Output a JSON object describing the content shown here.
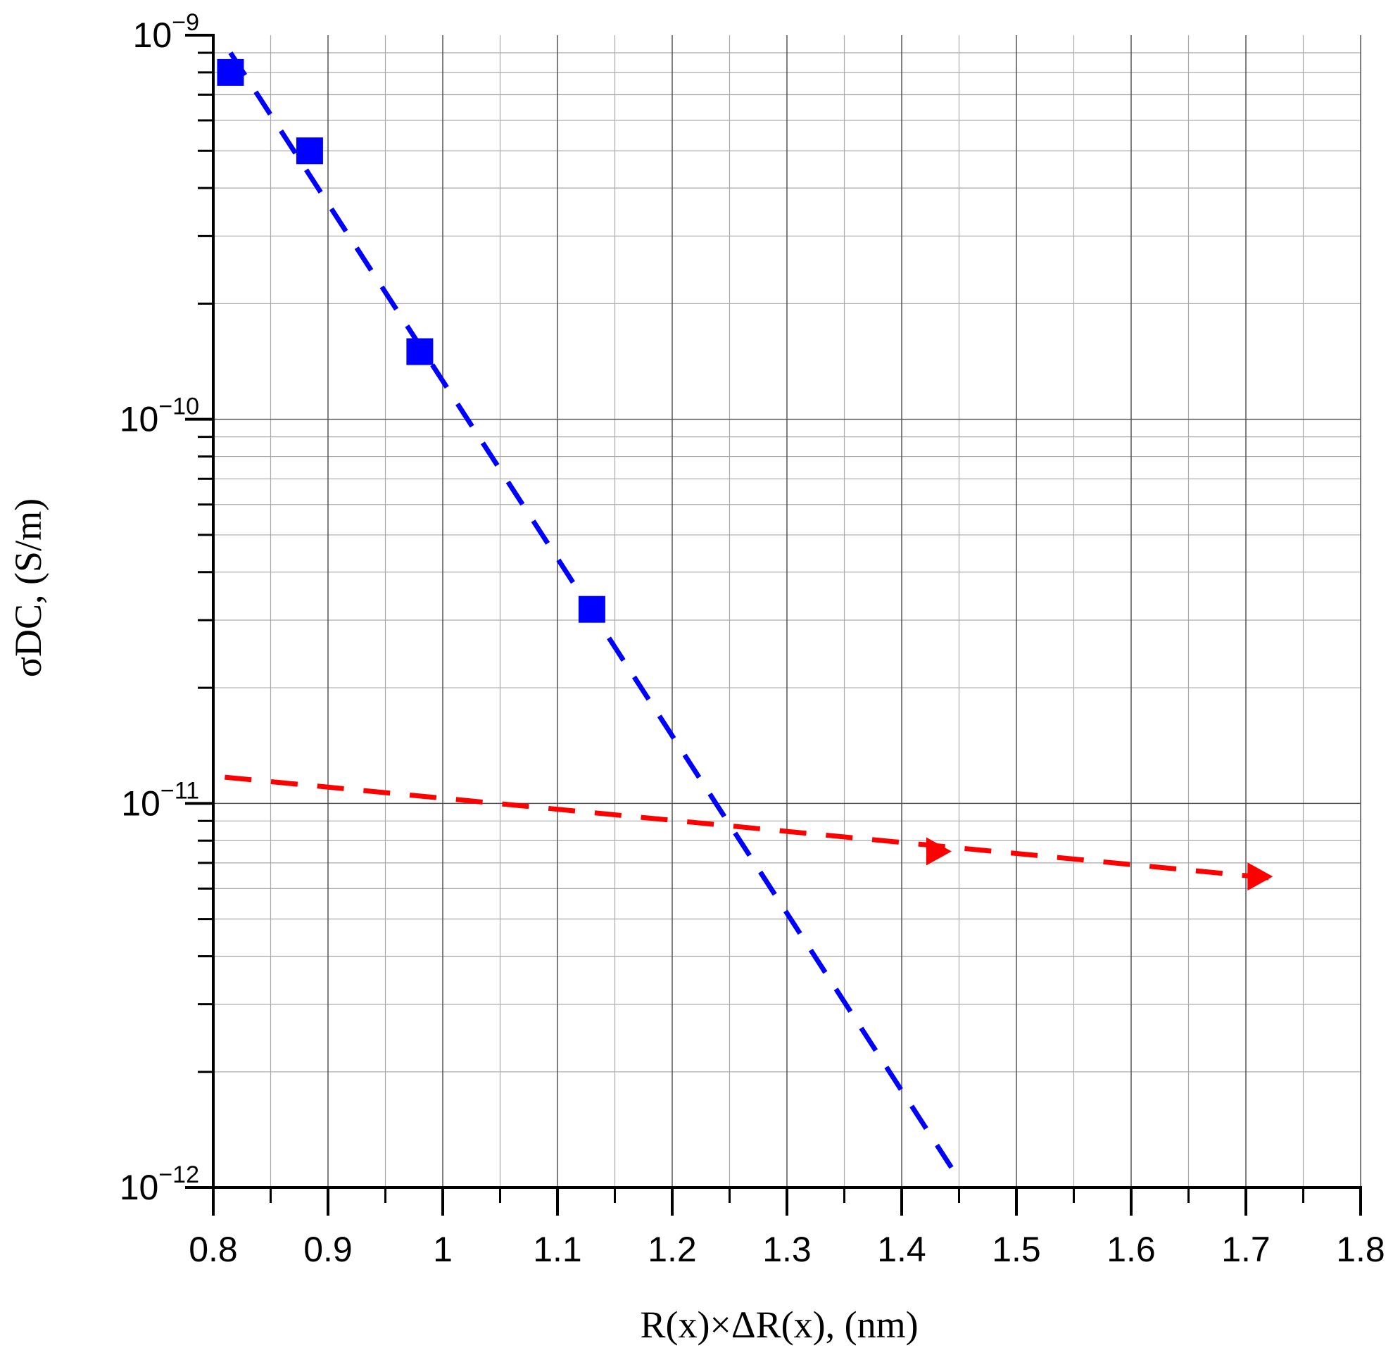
{
  "chart_data": {
    "type": "scatter",
    "xlabel": "R(x)×ΔR(x), (nm)",
    "ylabel": "σDC, (S/m)",
    "xlim": [
      0.8,
      1.8
    ],
    "ylim": [
      1e-12,
      1e-09
    ],
    "yscale": "log",
    "grid": true,
    "x_ticks": [
      "0.8",
      "0.9",
      "1",
      "1.1",
      "1.2",
      "1.3",
      "1.4",
      "1.5",
      "1.6",
      "1.7",
      "1.8"
    ],
    "x_tick_values": [
      0.8,
      0.9,
      1.0,
      1.1,
      1.2,
      1.3,
      1.4,
      1.5,
      1.6,
      1.7,
      1.8
    ],
    "y_tick_values": [
      1e-12,
      1e-11,
      1e-10,
      1e-09
    ],
    "y_tick_exponents": [
      "−12",
      "−11",
      "−10",
      "−9"
    ],
    "y_tick_base": "10",
    "series": [
      {
        "kind": "markers",
        "marker": "square",
        "color": "#0000ff",
        "points": [
          {
            "x": 0.815,
            "y": 8e-10
          },
          {
            "x": 0.884,
            "y": 5e-10
          },
          {
            "x": 0.98,
            "y": 1.5e-10
          },
          {
            "x": 1.13,
            "y": 3.2e-11
          }
        ]
      },
      {
        "kind": "fit-line",
        "style": "dashed",
        "color": "#0000ff",
        "points": [
          {
            "x": 0.815,
            "y": 9e-10
          },
          {
            "x": 1.45,
            "y": 1.05e-12
          }
        ]
      },
      {
        "kind": "fit-line",
        "style": "dashed",
        "color": "#ff0000",
        "points": [
          {
            "x": 0.81,
            "y": 1.17e-11
          },
          {
            "x": 1.72,
            "y": 6.4e-12
          }
        ]
      },
      {
        "kind": "markers",
        "marker": "triangle-right",
        "color": "#ff0000",
        "points": [
          {
            "x": 1.43,
            "y": 7.5e-12
          },
          {
            "x": 1.71,
            "y": 6.45e-12
          }
        ]
      }
    ]
  }
}
